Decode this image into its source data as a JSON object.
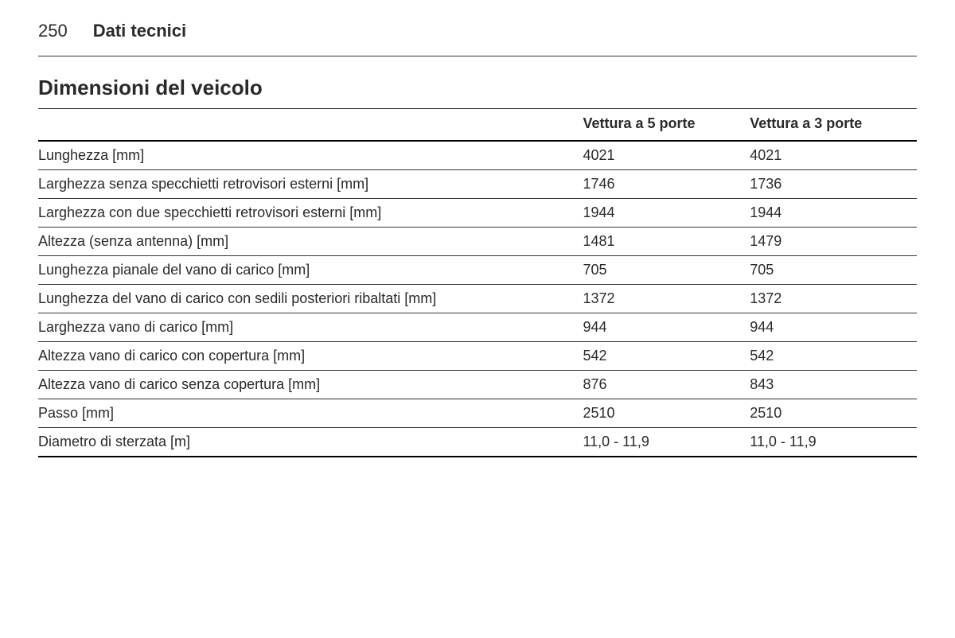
{
  "header": {
    "page_number": "250",
    "chapter": "Dati tecnici"
  },
  "section_title": "Dimensioni del veicolo",
  "table": {
    "type": "table",
    "background_color": "#ffffff",
    "text_color": "#2a2a2a",
    "border_color_thin": "#333333",
    "border_color_thick": "#000000",
    "font_size_body": 18,
    "font_size_header": 18,
    "header_font_weight": 700,
    "body_font_weight": 400,
    "columns": [
      "",
      "Vettura a 5 porte",
      "Vettura a 3 porte"
    ],
    "column_widths_pct": [
      62,
      19,
      19
    ],
    "rows": [
      [
        "Lunghezza [mm]",
        "4021",
        "4021"
      ],
      [
        "Larghezza senza specchietti retrovisori esterni [mm]",
        "1746",
        "1736"
      ],
      [
        "Larghezza con due specchietti retrovisori esterni [mm]",
        "1944",
        "1944"
      ],
      [
        "Altezza (senza antenna) [mm]",
        "1481",
        "1479"
      ],
      [
        "Lunghezza pianale del vano di carico [mm]",
        "705",
        "705"
      ],
      [
        "Lunghezza del vano di carico con sedili posteriori ribaltati [mm]",
        "1372",
        "1372"
      ],
      [
        "Larghezza vano di carico [mm]",
        "944",
        "944"
      ],
      [
        "Altezza vano di carico con copertura [mm]",
        "542",
        "542"
      ],
      [
        "Altezza vano di carico senza copertura [mm]",
        "876",
        "843"
      ],
      [
        "Passo [mm]",
        "2510",
        "2510"
      ],
      [
        "Diametro di sterzata [m]",
        "11,0 - 11,9",
        "11,0 - 11,9"
      ]
    ]
  }
}
